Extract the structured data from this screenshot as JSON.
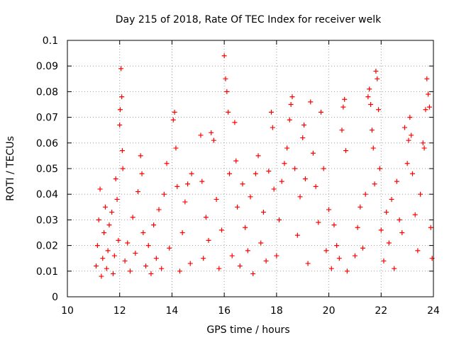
{
  "chart_data": {
    "type": "scatter",
    "title": "Day 215 of 2018, Rate Of TEC Index for receiver welk",
    "xlabel": "GPS time / hours",
    "ylabel": "ROTI / TECUs",
    "xlim": [
      10,
      24
    ],
    "ylim": [
      0,
      0.1
    ],
    "xticks": [
      10,
      12,
      14,
      16,
      18,
      20,
      22,
      24
    ],
    "xtick_labels": [
      "10",
      "12",
      "14",
      "16",
      "18",
      "20",
      "22",
      "24"
    ],
    "yticks": [
      0,
      0.01,
      0.02,
      0.03,
      0.04,
      0.05,
      0.06,
      0.07,
      0.08,
      0.09,
      0.1
    ],
    "ytick_labels": [
      "0",
      "0.01",
      "0.02",
      "0.03",
      "0.04",
      "0.05",
      "0.06",
      "0.07",
      "0.08",
      "0.09",
      "0.1"
    ],
    "grid": true,
    "marker": "+",
    "series": [
      {
        "name": "ROTI",
        "color": "#ff0000",
        "points": [
          [
            11.1,
            0.012
          ],
          [
            11.15,
            0.02
          ],
          [
            11.2,
            0.03
          ],
          [
            11.25,
            0.042
          ],
          [
            11.3,
            0.008
          ],
          [
            11.35,
            0.015
          ],
          [
            11.4,
            0.025
          ],
          [
            11.45,
            0.035
          ],
          [
            11.5,
            0.011
          ],
          [
            11.55,
            0.018
          ],
          [
            11.6,
            0.028
          ],
          [
            11.7,
            0.033
          ],
          [
            11.75,
            0.009
          ],
          [
            11.8,
            0.016
          ],
          [
            11.85,
            0.046
          ],
          [
            11.9,
            0.038
          ],
          [
            11.95,
            0.022
          ],
          [
            12.0,
            0.067
          ],
          [
            12.02,
            0.073
          ],
          [
            12.05,
            0.089
          ],
          [
            12.08,
            0.078
          ],
          [
            12.1,
            0.057
          ],
          [
            12.12,
            0.05
          ],
          [
            12.2,
            0.014
          ],
          [
            12.3,
            0.021
          ],
          [
            12.4,
            0.01
          ],
          [
            12.5,
            0.031
          ],
          [
            12.6,
            0.017
          ],
          [
            12.7,
            0.041
          ],
          [
            12.8,
            0.055
          ],
          [
            12.85,
            0.048
          ],
          [
            12.9,
            0.025
          ],
          [
            13.0,
            0.012
          ],
          [
            13.1,
            0.02
          ],
          [
            13.2,
            0.009
          ],
          [
            13.3,
            0.028
          ],
          [
            13.4,
            0.015
          ],
          [
            13.5,
            0.034
          ],
          [
            13.6,
            0.011
          ],
          [
            13.7,
            0.04
          ],
          [
            13.8,
            0.052
          ],
          [
            13.9,
            0.019
          ],
          [
            14.05,
            0.069
          ],
          [
            14.1,
            0.072
          ],
          [
            14.15,
            0.058
          ],
          [
            14.2,
            0.043
          ],
          [
            14.3,
            0.01
          ],
          [
            14.4,
            0.025
          ],
          [
            14.5,
            0.037
          ],
          [
            14.6,
            0.044
          ],
          [
            14.7,
            0.013
          ],
          [
            14.75,
            0.048
          ],
          [
            15.1,
            0.063
          ],
          [
            15.15,
            0.045
          ],
          [
            15.2,
            0.015
          ],
          [
            15.3,
            0.031
          ],
          [
            15.4,
            0.022
          ],
          [
            15.5,
            0.064
          ],
          [
            15.6,
            0.061
          ],
          [
            15.7,
            0.038
          ],
          [
            15.8,
            0.011
          ],
          [
            15.9,
            0.026
          ],
          [
            16.0,
            0.094
          ],
          [
            16.05,
            0.085
          ],
          [
            16.1,
            0.08
          ],
          [
            16.15,
            0.072
          ],
          [
            16.2,
            0.048
          ],
          [
            16.3,
            0.016
          ],
          [
            16.4,
            0.068
          ],
          [
            16.45,
            0.053
          ],
          [
            16.5,
            0.035
          ],
          [
            16.6,
            0.012
          ],
          [
            16.7,
            0.044
          ],
          [
            16.8,
            0.027
          ],
          [
            16.9,
            0.018
          ],
          [
            17.0,
            0.039
          ],
          [
            17.1,
            0.009
          ],
          [
            17.2,
            0.048
          ],
          [
            17.3,
            0.055
          ],
          [
            17.4,
            0.021
          ],
          [
            17.5,
            0.033
          ],
          [
            17.6,
            0.014
          ],
          [
            17.7,
            0.049
          ],
          [
            17.8,
            0.072
          ],
          [
            17.85,
            0.066
          ],
          [
            17.9,
            0.042
          ],
          [
            18.0,
            0.016
          ],
          [
            18.1,
            0.03
          ],
          [
            18.2,
            0.045
          ],
          [
            18.3,
            0.052
          ],
          [
            18.4,
            0.058
          ],
          [
            18.5,
            0.069
          ],
          [
            18.55,
            0.075
          ],
          [
            18.6,
            0.078
          ],
          [
            18.7,
            0.05
          ],
          [
            18.8,
            0.024
          ],
          [
            18.9,
            0.039
          ],
          [
            19.0,
            0.062
          ],
          [
            19.05,
            0.067
          ],
          [
            19.1,
            0.046
          ],
          [
            19.2,
            0.013
          ],
          [
            19.3,
            0.076
          ],
          [
            19.4,
            0.056
          ],
          [
            19.5,
            0.043
          ],
          [
            19.6,
            0.029
          ],
          [
            19.7,
            0.072
          ],
          [
            19.8,
            0.05
          ],
          [
            19.9,
            0.018
          ],
          [
            20.0,
            0.034
          ],
          [
            20.1,
            0.011
          ],
          [
            20.2,
            0.028
          ],
          [
            20.3,
            0.02
          ],
          [
            20.4,
            0.015
          ],
          [
            20.5,
            0.065
          ],
          [
            20.55,
            0.074
          ],
          [
            20.6,
            0.077
          ],
          [
            20.65,
            0.057
          ],
          [
            20.7,
            0.01
          ],
          [
            21.0,
            0.016
          ],
          [
            21.1,
            0.027
          ],
          [
            21.2,
            0.035
          ],
          [
            21.3,
            0.019
          ],
          [
            21.4,
            0.04
          ],
          [
            21.5,
            0.078
          ],
          [
            21.55,
            0.081
          ],
          [
            21.6,
            0.075
          ],
          [
            21.65,
            0.065
          ],
          [
            21.7,
            0.058
          ],
          [
            21.75,
            0.044
          ],
          [
            21.8,
            0.088
          ],
          [
            21.85,
            0.085
          ],
          [
            21.9,
            0.073
          ],
          [
            21.95,
            0.05
          ],
          [
            22.0,
            0.026
          ],
          [
            22.1,
            0.014
          ],
          [
            22.2,
            0.033
          ],
          [
            22.3,
            0.021
          ],
          [
            22.4,
            0.038
          ],
          [
            22.5,
            0.011
          ],
          [
            22.6,
            0.045
          ],
          [
            22.7,
            0.03
          ],
          [
            22.8,
            0.025
          ],
          [
            22.9,
            0.066
          ],
          [
            23.0,
            0.052
          ],
          [
            23.05,
            0.061
          ],
          [
            23.1,
            0.07
          ],
          [
            23.15,
            0.063
          ],
          [
            23.2,
            0.048
          ],
          [
            23.3,
            0.032
          ],
          [
            23.4,
            0.018
          ],
          [
            23.5,
            0.04
          ],
          [
            23.6,
            0.06
          ],
          [
            23.65,
            0.058
          ],
          [
            23.7,
            0.073
          ],
          [
            23.75,
            0.085
          ],
          [
            23.8,
            0.079
          ],
          [
            23.85,
            0.074
          ],
          [
            23.9,
            0.027
          ],
          [
            23.95,
            0.015
          ]
        ]
      }
    ]
  }
}
